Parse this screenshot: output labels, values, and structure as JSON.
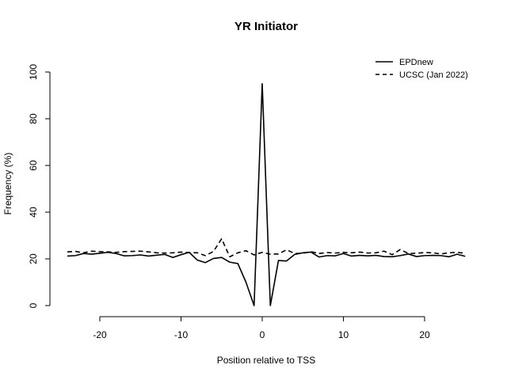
{
  "chart_data": {
    "type": "line",
    "title": "YR Initiator",
    "xlabel": "Position relative to TSS",
    "ylabel": "Frequency (%)",
    "xlim": [
      -25,
      25
    ],
    "ylim": [
      0,
      100
    ],
    "xticks": [
      -20,
      -10,
      0,
      10,
      20
    ],
    "yticks": [
      0,
      20,
      40,
      60,
      80,
      100
    ],
    "grid": false,
    "legend_position": "top-right",
    "x": [
      -24,
      -23,
      -22,
      -21,
      -20,
      -19,
      -18,
      -17,
      -16,
      -15,
      -14,
      -13,
      -12,
      -11,
      -10,
      -9,
      -8,
      -7,
      -6,
      -5,
      -4,
      -3,
      -2,
      -1,
      0,
      1,
      2,
      3,
      4,
      5,
      6,
      7,
      8,
      9,
      10,
      11,
      12,
      13,
      14,
      15,
      16,
      17,
      18,
      19,
      20,
      21,
      22,
      23,
      24,
      25
    ],
    "series": [
      {
        "name": "EPDnew",
        "dash": "solid",
        "color": "#000000",
        "values": [
          21.2,
          21.4,
          22.3,
          22.0,
          22.4,
          22.8,
          22.3,
          21.3,
          21.4,
          21.7,
          21.2,
          21.6,
          21.9,
          20.6,
          21.8,
          22.8,
          19.5,
          18.4,
          20.2,
          20.6,
          18.6,
          18.0,
          10.0,
          0.0,
          95.0,
          0.0,
          19.3,
          19.1,
          21.9,
          22.6,
          22.9,
          20.8,
          21.4,
          21.3,
          22.3,
          21.2,
          21.5,
          21.3,
          21.5,
          21.0,
          20.9,
          21.4,
          22.1,
          21.0,
          21.4,
          21.5,
          21.4,
          20.9,
          22.0,
          21.1
        ]
      },
      {
        "name": "UCSC (Jan 2022)",
        "dash": "dashed",
        "color": "#000000",
        "values": [
          23.0,
          23.2,
          22.6,
          23.3,
          23.1,
          23.0,
          22.8,
          23.1,
          23.2,
          23.3,
          23.0,
          22.6,
          22.5,
          22.6,
          22.9,
          22.7,
          22.6,
          21.4,
          23.2,
          28.6,
          20.9,
          22.6,
          23.5,
          21.7,
          22.8,
          22.0,
          22.1,
          23.9,
          22.3,
          22.4,
          23.1,
          22.3,
          22.7,
          22.5,
          22.8,
          22.6,
          22.9,
          22.5,
          22.6,
          23.3,
          21.8,
          24.0,
          22.3,
          22.4,
          22.7,
          22.6,
          22.1,
          22.6,
          22.8,
          22.4
        ]
      }
    ]
  }
}
